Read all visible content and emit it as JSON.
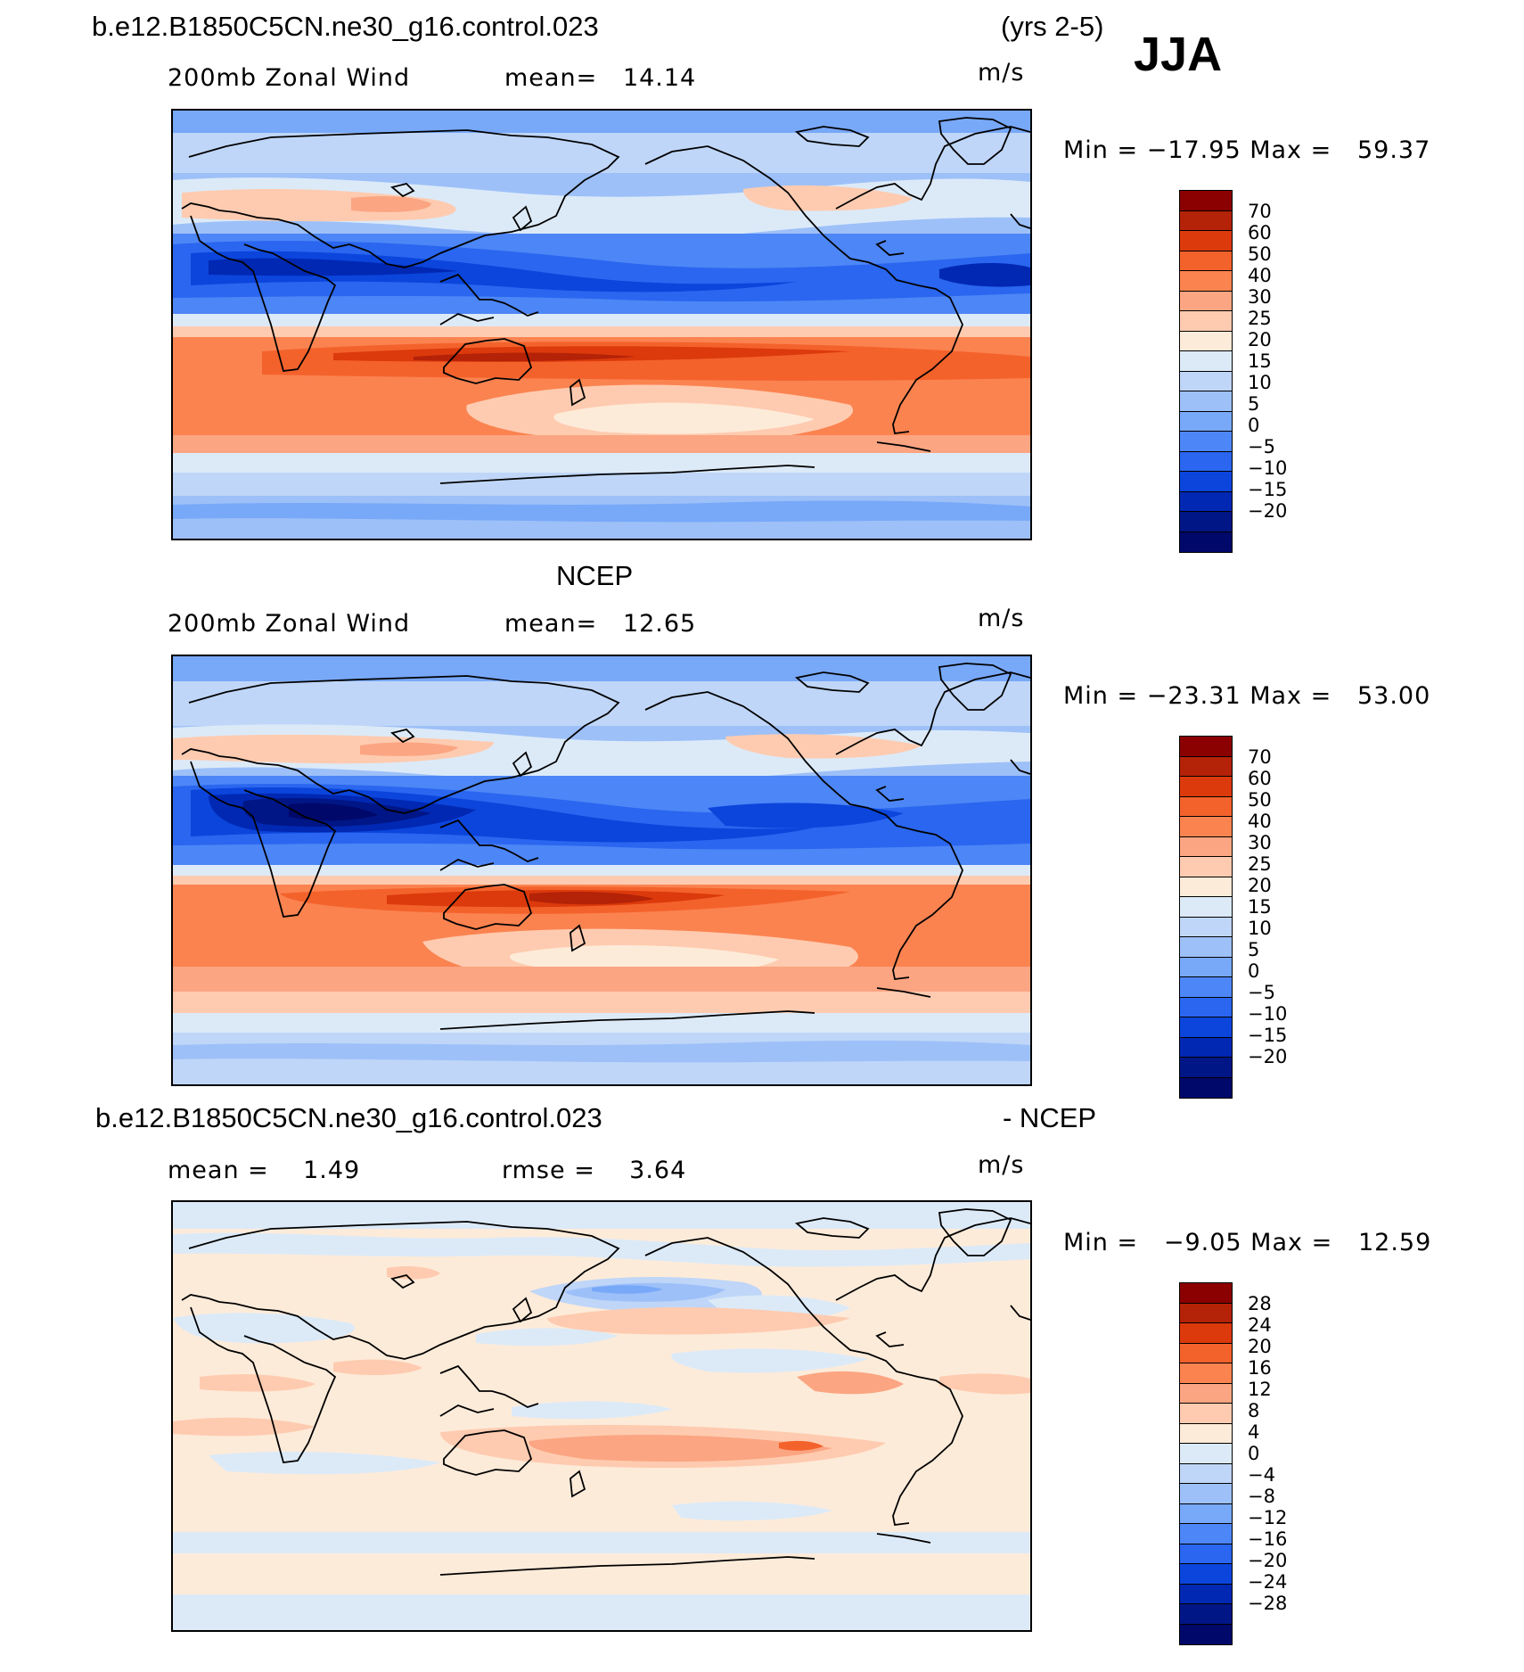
{
  "header": {
    "case_name": "b.e12.B1850C5CN.ne30_g16.control.023",
    "years": "(yrs 2-5)",
    "season": "JJA"
  },
  "panels": [
    {
      "id": "model",
      "section_title": "",
      "field_label": "200mb Zonal Wind",
      "stat1": "mean=   14.14",
      "stat2": "",
      "units": "m/s",
      "minmax": "Min = −17.95 Max =   59.37",
      "colorbar": {
        "colors": [
          "#8b0000",
          "#b42207",
          "#dc3a0c",
          "#f4622c",
          "#fb8350",
          "#fba582",
          "#fecbb0",
          "#fdebd9",
          "#dceaf8",
          "#bfd6f8",
          "#9dc0f8",
          "#78a8f8",
          "#4d86f6",
          "#2a66ef",
          "#0b45dc",
          "#0028b3",
          "#001686",
          "#00086a"
        ],
        "ticks": [
          "70",
          "60",
          "50",
          "40",
          "30",
          "25",
          "20",
          "15",
          "10",
          "5",
          "0",
          "−5",
          "−10",
          "−15",
          "−20"
        ]
      }
    },
    {
      "id": "obs",
      "section_title": "NCEP",
      "field_label": "200mb Zonal Wind",
      "stat1": "mean=   12.65",
      "stat2": "",
      "units": "m/s",
      "minmax": "Min = −23.31 Max =   53.00",
      "colorbar": {
        "colors": [
          "#8b0000",
          "#b42207",
          "#dc3a0c",
          "#f4622c",
          "#fb8350",
          "#fba582",
          "#fecbb0",
          "#fdebd9",
          "#dceaf8",
          "#bfd6f8",
          "#9dc0f8",
          "#78a8f8",
          "#4d86f6",
          "#2a66ef",
          "#0b45dc",
          "#0028b3",
          "#001686",
          "#00086a"
        ],
        "ticks": [
          "70",
          "60",
          "50",
          "40",
          "30",
          "25",
          "20",
          "15",
          "10",
          "5",
          "0",
          "−5",
          "−10",
          "−15",
          "−20"
        ]
      }
    },
    {
      "id": "diff",
      "section_title": "b.e12.B1850C5CN.ne30_g16.control.023",
      "section_suffix": "- NCEP",
      "field_label": "mean =    1.49",
      "stat1": "rmse =    3.64",
      "stat2": "",
      "units": "m/s",
      "minmax": "Min =   −9.05 Max =   12.59",
      "colorbar": {
        "colors": [
          "#8b0000",
          "#b42207",
          "#dc3a0c",
          "#f4622c",
          "#fb8350",
          "#fba582",
          "#fecbb0",
          "#fdebd9",
          "#dceaf8",
          "#bfd6f8",
          "#9dc0f8",
          "#78a8f8",
          "#4d86f6",
          "#2a66ef",
          "#0b45dc",
          "#0028b3",
          "#001686",
          "#00086a"
        ],
        "ticks": [
          "28",
          "24",
          "20",
          "16",
          "12",
          "8",
          "4",
          "0",
          "−4",
          "−8",
          "−12",
          "−16",
          "−20",
          "−24",
          "−28"
        ]
      }
    }
  ]
}
